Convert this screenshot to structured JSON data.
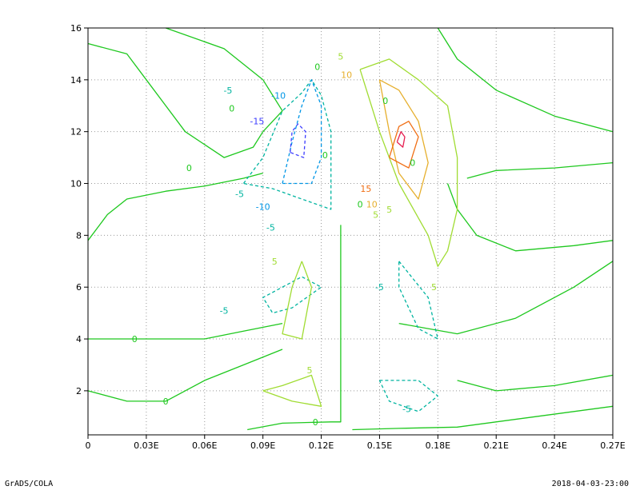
{
  "chart_data": {
    "type": "contour",
    "xlim": [
      0,
      0.27
    ],
    "ylim": [
      0.3,
      16
    ],
    "x_ticks": [
      {
        "value": 0,
        "label": "0"
      },
      {
        "value": 0.03,
        "label": "0.03E"
      },
      {
        "value": 0.06,
        "label": "0.06E"
      },
      {
        "value": 0.09,
        "label": "0.09E"
      },
      {
        "value": 0.12,
        "label": "0.12E"
      },
      {
        "value": 0.15,
        "label": "0.15E"
      },
      {
        "value": 0.18,
        "label": "0.18E"
      },
      {
        "value": 0.21,
        "label": "0.21E"
      },
      {
        "value": 0.24,
        "label": "0.24E"
      },
      {
        "value": 0.27,
        "label": "0.27E"
      }
    ],
    "y_ticks": [
      {
        "value": 2,
        "label": "2"
      },
      {
        "value": 4,
        "label": "4"
      },
      {
        "value": 6,
        "label": "6"
      },
      {
        "value": 8,
        "label": "8"
      },
      {
        "value": 10,
        "label": "10"
      },
      {
        "value": 12,
        "label": "12"
      },
      {
        "value": 14,
        "label": "14"
      },
      {
        "value": 16,
        "label": "16"
      }
    ],
    "grid": true,
    "levels": [
      -20,
      -15,
      -10,
      -5,
      0,
      5,
      10,
      15,
      20
    ],
    "colors": {
      "-20": "#9b00c8",
      "-15": "#3c3cff",
      "-10": "#0096e6",
      "-5": "#00b4a0",
      "0": "#1ec81e",
      "5": "#a0dc32",
      "10": "#e6af2d",
      "15": "#f06e14",
      "20": "#e61e50"
    },
    "contours": [
      {
        "level": 0,
        "points": [
          [
            0.0,
            7.8
          ],
          [
            0.01,
            8.8
          ],
          [
            0.02,
            9.4
          ],
          [
            0.04,
            9.7
          ],
          [
            0.06,
            9.9
          ],
          [
            0.08,
            10.2
          ],
          [
            0.09,
            10.4
          ]
        ]
      },
      {
        "level": 0,
        "points": [
          [
            0.0,
            4.0
          ],
          [
            0.02,
            4.0
          ],
          [
            0.04,
            4.0
          ],
          [
            0.06,
            4.0
          ],
          [
            0.08,
            4.3
          ],
          [
            0.1,
            4.6
          ]
        ]
      },
      {
        "level": 0,
        "points": [
          [
            0.0,
            2.0
          ],
          [
            0.02,
            1.6
          ],
          [
            0.04,
            1.6
          ],
          [
            0.06,
            2.4
          ],
          [
            0.08,
            3.0
          ],
          [
            0.1,
            3.6
          ]
        ]
      },
      {
        "level": 0,
        "points": [
          [
            0.082,
            0.5
          ],
          [
            0.1,
            0.75
          ],
          [
            0.125,
            0.8
          ],
          [
            0.13,
            0.8
          ],
          [
            0.13,
            4.0
          ],
          [
            0.13,
            8.4
          ]
        ]
      },
      {
        "level": 0,
        "points": [
          [
            0.136,
            0.5
          ],
          [
            0.16,
            0.55
          ],
          [
            0.19,
            0.6
          ],
          [
            0.23,
            1.0
          ],
          [
            0.27,
            1.4
          ]
        ]
      },
      {
        "level": 0,
        "points": [
          [
            0.04,
            16
          ],
          [
            0.07,
            15.2
          ],
          [
            0.09,
            14.0
          ],
          [
            0.1,
            12.8
          ],
          [
            0.09,
            12.0
          ],
          [
            0.085,
            11.4
          ],
          [
            0.07,
            11.0
          ],
          [
            0.05,
            12.0
          ],
          [
            0.03,
            14.0
          ],
          [
            0.02,
            15.0
          ],
          [
            0.0,
            15.4
          ]
        ]
      },
      {
        "level": 0,
        "points": [
          [
            0.27,
            12.0
          ],
          [
            0.24,
            12.6
          ],
          [
            0.21,
            13.6
          ],
          [
            0.19,
            14.8
          ],
          [
            0.18,
            16
          ]
        ]
      },
      {
        "level": 0,
        "points": [
          [
            0.27,
            10.8
          ],
          [
            0.24,
            10.6
          ],
          [
            0.21,
            10.5
          ],
          [
            0.195,
            10.2
          ]
        ]
      },
      {
        "level": 0,
        "points": [
          [
            0.27,
            7.0
          ],
          [
            0.25,
            6.0
          ],
          [
            0.22,
            4.8
          ],
          [
            0.19,
            4.2
          ],
          [
            0.16,
            4.6
          ]
        ]
      },
      {
        "level": 0,
        "points": [
          [
            0.27,
            2.6
          ],
          [
            0.24,
            2.2
          ],
          [
            0.21,
            2.0
          ],
          [
            0.19,
            2.4
          ]
        ]
      },
      {
        "level": 0,
        "points": [
          [
            0.185,
            10.0
          ],
          [
            0.19,
            9.0
          ],
          [
            0.2,
            8.0
          ],
          [
            0.22,
            7.4
          ],
          [
            0.25,
            7.6
          ],
          [
            0.27,
            7.8
          ]
        ]
      },
      {
        "level": -5,
        "points": [
          [
            0.08,
            10.0
          ],
          [
            0.09,
            11.0
          ],
          [
            0.1,
            12.8
          ],
          [
            0.11,
            13.5
          ],
          [
            0.115,
            14.0
          ],
          [
            0.12,
            13.4
          ],
          [
            0.125,
            12.0
          ],
          [
            0.125,
            10.0
          ],
          [
            0.125,
            9.0
          ],
          [
            0.11,
            9.4
          ],
          [
            0.095,
            9.8
          ],
          [
            0.08,
            10.0
          ]
        ],
        "dashed": true
      },
      {
        "level": -5,
        "points": [
          [
            0.1,
            6.0
          ],
          [
            0.11,
            6.4
          ],
          [
            0.12,
            6.0
          ],
          [
            0.105,
            5.2
          ],
          [
            0.095,
            5.0
          ],
          [
            0.09,
            5.6
          ],
          [
            0.1,
            6.0
          ]
        ],
        "dashed": true
      },
      {
        "level": -5,
        "points": [
          [
            0.15,
            2.4
          ],
          [
            0.17,
            2.4
          ],
          [
            0.18,
            1.8
          ],
          [
            0.17,
            1.2
          ],
          [
            0.155,
            1.6
          ],
          [
            0.15,
            2.4
          ]
        ],
        "dashed": true
      },
      {
        "level": -5,
        "points": [
          [
            0.16,
            7.0
          ],
          [
            0.175,
            5.6
          ],
          [
            0.18,
            4.0
          ],
          [
            0.17,
            4.4
          ],
          [
            0.16,
            6.0
          ],
          [
            0.16,
            7.0
          ]
        ],
        "dashed": true
      },
      {
        "level": -10,
        "points": [
          [
            0.1,
            10.0
          ],
          [
            0.105,
            11.6
          ],
          [
            0.11,
            13.0
          ],
          [
            0.115,
            14.0
          ],
          [
            0.12,
            13.0
          ],
          [
            0.12,
            11.0
          ],
          [
            0.115,
            10.0
          ],
          [
            0.1,
            10.0
          ]
        ],
        "dashed": true
      },
      {
        "level": -15,
        "points": [
          [
            0.104,
            11.2
          ],
          [
            0.105,
            12.0
          ],
          [
            0.108,
            12.3
          ],
          [
            0.112,
            12.0
          ],
          [
            0.111,
            11.0
          ],
          [
            0.104,
            11.2
          ]
        ],
        "dashed": true
      },
      {
        "level": 5,
        "points": [
          [
            0.14,
            14.4
          ],
          [
            0.15,
            12.0
          ],
          [
            0.16,
            10.0
          ],
          [
            0.175,
            8.0
          ],
          [
            0.18,
            6.8
          ],
          [
            0.185,
            7.4
          ],
          [
            0.19,
            9.0
          ],
          [
            0.19,
            11.0
          ],
          [
            0.185,
            13.0
          ],
          [
            0.17,
            14.0
          ],
          [
            0.155,
            14.8
          ],
          [
            0.14,
            14.4
          ]
        ]
      },
      {
        "level": 5,
        "points": [
          [
            0.09,
            2.0
          ],
          [
            0.105,
            1.6
          ],
          [
            0.12,
            1.4
          ],
          [
            0.115,
            2.6
          ],
          [
            0.1,
            2.2
          ],
          [
            0.09,
            2.0
          ]
        ]
      },
      {
        "level": 5,
        "points": [
          [
            0.11,
            7.0
          ],
          [
            0.115,
            6.0
          ],
          [
            0.11,
            4.0
          ],
          [
            0.1,
            4.2
          ],
          [
            0.105,
            6.0
          ],
          [
            0.11,
            7.0
          ]
        ]
      },
      {
        "level": 10,
        "points": [
          [
            0.15,
            14.0
          ],
          [
            0.155,
            12.0
          ],
          [
            0.16,
            10.4
          ],
          [
            0.17,
            9.4
          ],
          [
            0.175,
            10.8
          ],
          [
            0.17,
            12.4
          ],
          [
            0.16,
            13.6
          ],
          [
            0.15,
            14.0
          ]
        ]
      },
      {
        "level": 15,
        "points": [
          [
            0.155,
            11.0
          ],
          [
            0.16,
            12.2
          ],
          [
            0.165,
            12.4
          ],
          [
            0.17,
            11.8
          ],
          [
            0.165,
            10.6
          ],
          [
            0.155,
            11.0
          ]
        ]
      },
      {
        "level": 20,
        "points": [
          [
            0.159,
            11.6
          ],
          [
            0.161,
            12.0
          ],
          [
            0.163,
            11.8
          ],
          [
            0.162,
            11.4
          ],
          [
            0.159,
            11.6
          ]
        ]
      }
    ],
    "contour_labels": [
      {
        "text": "-5",
        "x": 0.072,
        "y": 13.6,
        "level": -5
      },
      {
        "text": "-10",
        "x": 0.098,
        "y": 13.4,
        "level": -10
      },
      {
        "text": "-15",
        "x": 0.087,
        "y": 12.4,
        "level": -15
      },
      {
        "text": "-10",
        "x": 0.09,
        "y": 9.1,
        "level": -10
      },
      {
        "text": "-5",
        "x": 0.078,
        "y": 9.6,
        "level": -5
      },
      {
        "text": "-5",
        "x": 0.094,
        "y": 8.3,
        "level": -5
      },
      {
        "text": "-5",
        "x": 0.07,
        "y": 5.1,
        "level": -5
      },
      {
        "text": "-5",
        "x": 0.15,
        "y": 6.0,
        "level": -5
      },
      {
        "text": "-5",
        "x": 0.164,
        "y": 1.3,
        "level": -5
      },
      {
        "text": "0",
        "x": 0.074,
        "y": 12.9,
        "level": 0
      },
      {
        "text": "0",
        "x": 0.052,
        "y": 10.6,
        "level": 0
      },
      {
        "text": "0",
        "x": 0.118,
        "y": 14.5,
        "level": 0
      },
      {
        "text": "0",
        "x": 0.122,
        "y": 11.1,
        "level": 0
      },
      {
        "text": "0",
        "x": 0.153,
        "y": 13.2,
        "level": 0
      },
      {
        "text": "0",
        "x": 0.167,
        "y": 10.8,
        "level": 0
      },
      {
        "text": "0",
        "x": 0.14,
        "y": 9.2,
        "level": 0
      },
      {
        "text": "0",
        "x": 0.024,
        "y": 4.0,
        "level": 0
      },
      {
        "text": "0",
        "x": 0.04,
        "y": 1.6,
        "level": 0
      },
      {
        "text": "0",
        "x": 0.117,
        "y": 0.8,
        "level": 0
      },
      {
        "text": "5",
        "x": 0.13,
        "y": 14.9,
        "level": 5
      },
      {
        "text": "5",
        "x": 0.148,
        "y": 8.8,
        "level": 5
      },
      {
        "text": "5",
        "x": 0.096,
        "y": 7.0,
        "level": 5
      },
      {
        "text": "5",
        "x": 0.178,
        "y": 6.0,
        "level": 5
      },
      {
        "text": "5",
        "x": 0.155,
        "y": 9.0,
        "level": 5
      },
      {
        "text": "5",
        "x": 0.114,
        "y": 2.8,
        "level": 5
      },
      {
        "text": "10",
        "x": 0.133,
        "y": 14.2,
        "level": 10
      },
      {
        "text": "10",
        "x": 0.146,
        "y": 9.2,
        "level": 10
      },
      {
        "text": "15",
        "x": 0.143,
        "y": 9.8,
        "level": 15
      }
    ]
  },
  "footer": {
    "left": "GrADS/COLA",
    "right": "2018-04-03-23:00"
  }
}
